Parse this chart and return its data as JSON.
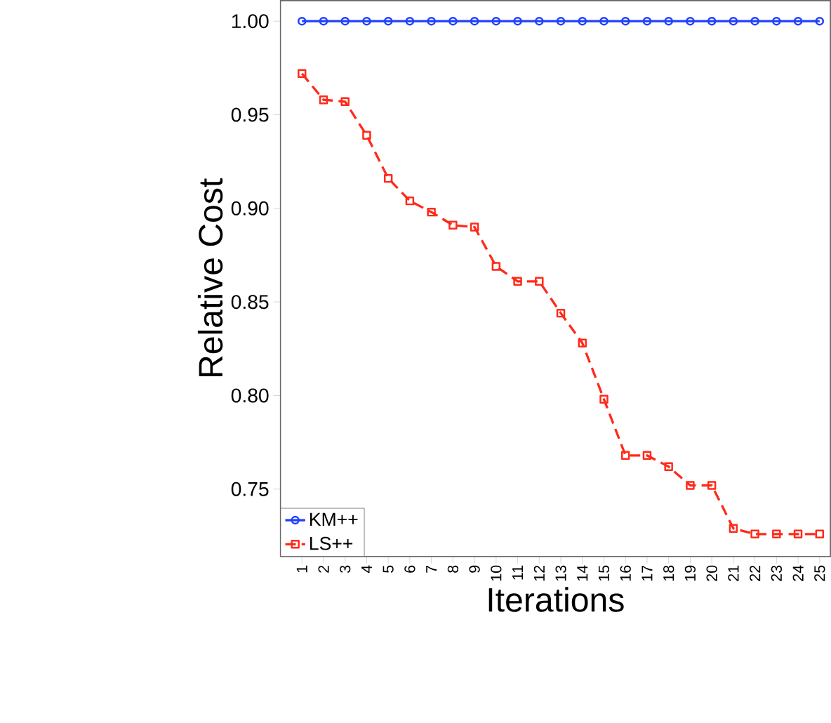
{
  "chart_data": {
    "type": "line",
    "xlabel": "Iterations",
    "ylabel": "Relative Cost",
    "categories": [
      "1",
      "2",
      "3",
      "4",
      "5",
      "6",
      "7",
      "8",
      "9",
      "10",
      "11",
      "12",
      "13",
      "14",
      "15",
      "16",
      "17",
      "18",
      "19",
      "20",
      "21",
      "22",
      "23",
      "24",
      "25"
    ],
    "series": [
      {
        "name": "KM++",
        "color": "#2040ff",
        "marker": "circle",
        "line_style": "solid",
        "values": [
          1.0,
          1.0,
          1.0,
          1.0,
          1.0,
          1.0,
          1.0,
          1.0,
          1.0,
          1.0,
          1.0,
          1.0,
          1.0,
          1.0,
          1.0,
          1.0,
          1.0,
          1.0,
          1.0,
          1.0,
          1.0,
          1.0,
          1.0,
          1.0,
          1.0
        ]
      },
      {
        "name": "LS++",
        "color": "#ff2a1a",
        "marker": "square",
        "line_style": "dashed",
        "values": [
          0.972,
          0.958,
          0.957,
          0.939,
          0.916,
          0.904,
          0.898,
          0.891,
          0.89,
          0.869,
          0.861,
          0.861,
          0.844,
          0.828,
          0.798,
          0.768,
          0.768,
          0.762,
          0.752,
          0.752,
          0.729,
          0.726,
          0.726,
          0.726,
          0.726
        ]
      }
    ],
    "ylim": [
      0.714,
      1.011
    ],
    "yticks": [
      {
        "value": 0.75,
        "label": "0.75"
      },
      {
        "value": 0.8,
        "label": "0.80"
      },
      {
        "value": 0.85,
        "label": "0.85"
      },
      {
        "value": 0.9,
        "label": "0.90"
      },
      {
        "value": 0.95,
        "label": "0.95"
      },
      {
        "value": 1.0,
        "label": "1.00"
      }
    ],
    "grid": false,
    "legend": "bottom left"
  }
}
